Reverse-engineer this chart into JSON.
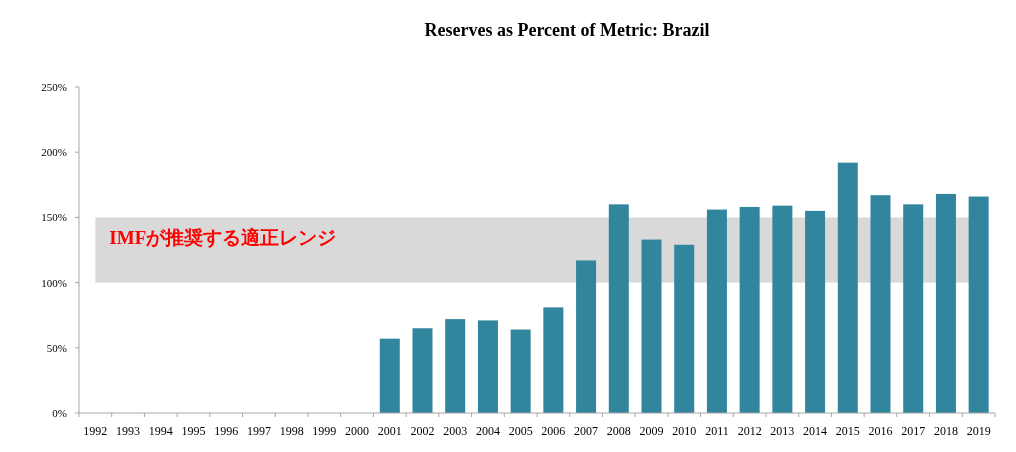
{
  "chart_data": {
    "type": "bar",
    "title": "Reserves as Percent of Metric: Brazil",
    "categories": [
      "1992",
      "1993",
      "1994",
      "1995",
      "1996",
      "1997",
      "1998",
      "1999",
      "2000",
      "2001",
      "2002",
      "2003",
      "2004",
      "2005",
      "2006",
      "2007",
      "2008",
      "2009",
      "2010",
      "2011",
      "2012",
      "2013",
      "2014",
      "2015",
      "2016",
      "2017",
      "2018",
      "2019"
    ],
    "values": [
      null,
      null,
      null,
      null,
      null,
      null,
      null,
      null,
      null,
      57,
      65,
      72,
      71,
      64,
      81,
      117,
      160,
      133,
      129,
      156,
      158,
      159,
      155,
      192,
      167,
      160,
      168,
      166
    ],
    "color": "#31859c",
    "ylim": [
      0,
      250
    ],
    "yticks": [
      {
        "value": 0,
        "label": "0%"
      },
      {
        "value": 50,
        "label": "50%"
      },
      {
        "value": 100,
        "label": "100%"
      },
      {
        "value": 150,
        "label": "150%"
      },
      {
        "value": 200,
        "label": "200%"
      },
      {
        "value": 250,
        "label": "250%"
      }
    ],
    "bands": [
      {
        "axis": "y",
        "from": 100,
        "to": 150,
        "label": "IMFが推奨する適正レンジ",
        "color": "#d9d9d9"
      }
    ],
    "grid": false
  }
}
